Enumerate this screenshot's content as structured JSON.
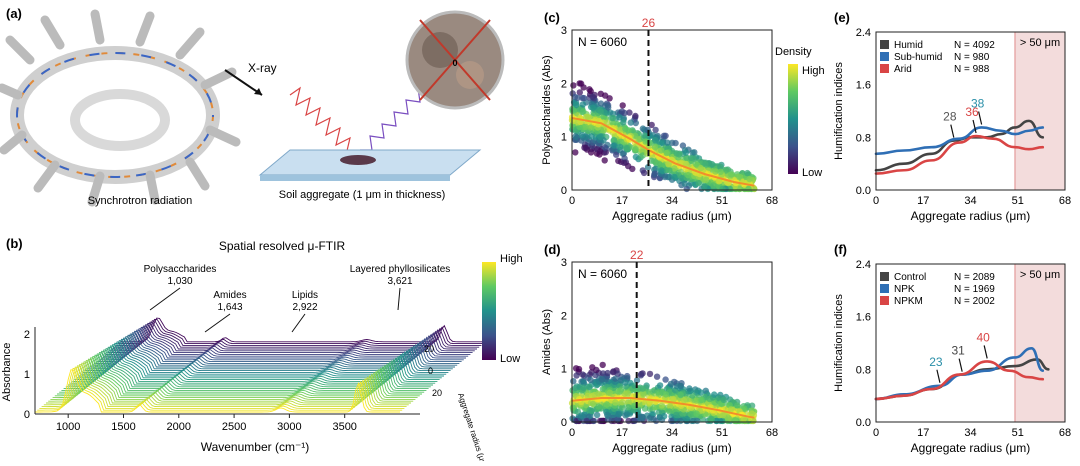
{
  "panels": {
    "a": {
      "label": "(a)",
      "xray_label": "X-ray",
      "synchrotron_label": "Synchrotron radiation",
      "aggregate_label": "Soil aggregate (1 μm in thickness)",
      "center_label": "0"
    },
    "b": {
      "label": "(b)",
      "title": "Spatial resolved μ-FTIR",
      "xlabel": "Wavenumber (cm⁻¹)",
      "ylabel": "Absorbance",
      "depth_label": "Aggregate radius (μm)",
      "colorbar_high": "High",
      "colorbar_low": "Low",
      "x_ticks": [
        "1000",
        "1500",
        "2000",
        "2500",
        "3000",
        "3500"
      ],
      "y_ticks": [
        "0",
        "1",
        "2"
      ],
      "depth_ticks": [
        "20",
        "0",
        "20"
      ],
      "annotations": [
        {
          "name": "Polysaccharides",
          "value": "1,030"
        },
        {
          "name": "Amides",
          "value": "1,643"
        },
        {
          "name": "Lipids",
          "value": "2,922"
        },
        {
          "name": "Layered phyllosilicates",
          "value": "3,621"
        }
      ]
    }
  },
  "chart_data": [
    {
      "panel": "(c)",
      "type": "scatter",
      "xlabel": "Aggregate radius (μm)",
      "ylabel": "Polysaccharides (Abs)",
      "x_ticks": [
        "0",
        "17",
        "34",
        "51",
        "68"
      ],
      "y_ticks": [
        "0",
        "1",
        "2",
        "3"
      ],
      "xlim": [
        0,
        68
      ],
      "ylim": [
        0,
        3
      ],
      "n_label": "N = 6060",
      "cutoff": 26,
      "cutoff_label": "26",
      "colorbar_title": "Density",
      "colorbar_high": "High",
      "colorbar_low": "Low",
      "fit": {
        "x": [
          0,
          10,
          20,
          26,
          35,
          45,
          55,
          62
        ],
        "y": [
          1.35,
          1.25,
          0.95,
          0.75,
          0.5,
          0.3,
          0.15,
          0.08
        ]
      }
    },
    {
      "panel": "(d)",
      "type": "scatter",
      "xlabel": "Aggregate radius (μm)",
      "ylabel": "Amides (Abs)",
      "x_ticks": [
        "0",
        "17",
        "34",
        "51",
        "68"
      ],
      "y_ticks": [
        "0",
        "1",
        "2",
        "3"
      ],
      "xlim": [
        0,
        68
      ],
      "ylim": [
        0,
        3
      ],
      "n_label": "N = 6060",
      "cutoff": 22,
      "cutoff_label": "22",
      "fit": {
        "x": [
          0,
          10,
          20,
          30,
          40,
          50,
          60,
          62
        ],
        "y": [
          0.4,
          0.45,
          0.45,
          0.4,
          0.32,
          0.22,
          0.1,
          0.08
        ]
      }
    },
    {
      "panel": "(e)",
      "type": "line",
      "xlabel": "Aggregate radius (μm)",
      "ylabel": "Humification indices",
      "x_ticks": [
        "0",
        "17",
        "34",
        "51",
        "68"
      ],
      "y_ticks": [
        "0.0",
        "0.8",
        "1.6",
        "2.4"
      ],
      "xlim": [
        0,
        68
      ],
      "ylim": [
        0,
        2.4
      ],
      "shade_label": "> 50 μm",
      "shade_from": 50,
      "series": [
        {
          "name": "Humid",
          "n": "N = 4092",
          "color": "#444444",
          "peak_label": "28",
          "peak_color": "#555555",
          "peak_x": 28,
          "x": [
            0,
            10,
            20,
            28,
            34,
            40,
            45,
            50,
            55,
            60
          ],
          "y": [
            0.3,
            0.4,
            0.55,
            0.75,
            0.8,
            0.8,
            0.85,
            0.95,
            1.05,
            0.8
          ]
        },
        {
          "name": "Sub-humid",
          "n": "N = 980",
          "color": "#2f6fb5",
          "peak_label": "38",
          "peak_color": "#2a8fa8",
          "peak_x": 38,
          "x": [
            0,
            10,
            20,
            30,
            38,
            45,
            50,
            55,
            60
          ],
          "y": [
            0.55,
            0.6,
            0.65,
            0.78,
            0.95,
            0.9,
            0.85,
            0.9,
            0.95
          ]
        },
        {
          "name": "Arid",
          "n": "N = 988",
          "color": "#d94545",
          "peak_label": "36",
          "peak_color": "#d94545",
          "peak_x": 36,
          "x": [
            0,
            10,
            20,
            30,
            36,
            42,
            50,
            55,
            60
          ],
          "y": [
            0.25,
            0.3,
            0.45,
            0.72,
            0.82,
            0.78,
            0.65,
            0.62,
            0.65
          ]
        }
      ]
    },
    {
      "panel": "(f)",
      "type": "line",
      "xlabel": "Aggregate radius (μm)",
      "ylabel": "Humification indices",
      "x_ticks": [
        "0",
        "17",
        "34",
        "51",
        "68"
      ],
      "y_ticks": [
        "0.0",
        "0.8",
        "1.6",
        "2.4"
      ],
      "xlim": [
        0,
        68
      ],
      "ylim": [
        0,
        2.4
      ],
      "shade_label": "> 50 μm",
      "shade_from": 50,
      "series": [
        {
          "name": "Control",
          "n": "N = 2089",
          "color": "#444444",
          "peak_label": "31",
          "peak_color": "#444444",
          "peak_x": 31,
          "x": [
            0,
            10,
            20,
            31,
            40,
            50,
            58,
            62
          ],
          "y": [
            0.35,
            0.4,
            0.5,
            0.72,
            0.8,
            0.85,
            0.95,
            0.8
          ]
        },
        {
          "name": "NPK",
          "n": "N = 1969",
          "color": "#2f6fb5",
          "peak_label": "23",
          "peak_color": "#2a8fa8",
          "peak_x": 23,
          "x": [
            0,
            10,
            23,
            31,
            40,
            50,
            56,
            60
          ],
          "y": [
            0.35,
            0.42,
            0.55,
            0.72,
            0.78,
            0.98,
            1.12,
            0.78
          ]
        },
        {
          "name": "NPKM",
          "n": "N = 2002",
          "color": "#d94545",
          "peak_label": "40",
          "peak_color": "#d94545",
          "peak_x": 40,
          "x": [
            0,
            10,
            20,
            30,
            40,
            48,
            55,
            60
          ],
          "y": [
            0.35,
            0.4,
            0.5,
            0.72,
            0.92,
            0.78,
            0.68,
            0.65
          ]
        }
      ]
    }
  ]
}
